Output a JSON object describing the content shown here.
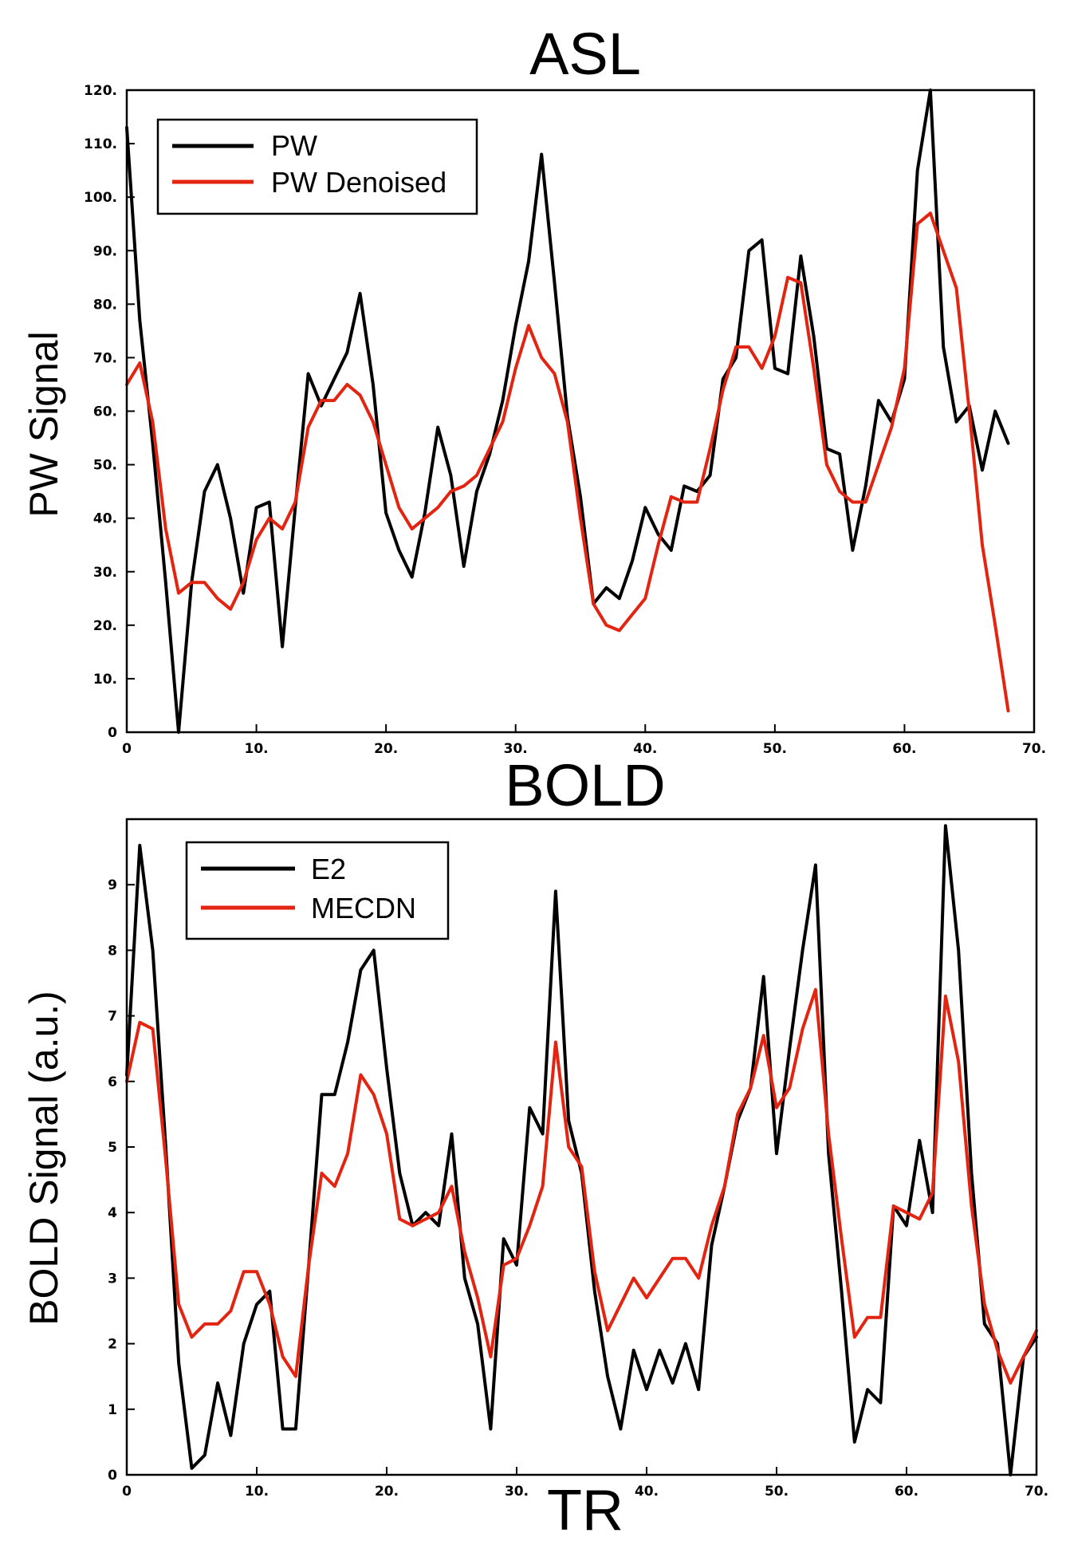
{
  "chart_data": [
    {
      "type": "line",
      "title": "ASL",
      "xlabel": "",
      "ylabel": "PW Signal",
      "xlim": [
        0,
        70
      ],
      "ylim": [
        0,
        120
      ],
      "xticks": [
        0,
        10,
        20,
        30,
        40,
        50,
        60,
        70
      ],
      "xtick_labels": [
        "0",
        "10.",
        "20.",
        "30.",
        "40.",
        "50.",
        "60.",
        "70."
      ],
      "yticks": [
        0,
        10,
        20,
        30,
        40,
        50,
        60,
        70,
        80,
        90,
        100,
        110,
        120
      ],
      "ytick_labels": [
        "0",
        "10.",
        "20.",
        "30.",
        "40.",
        "50.",
        "60.",
        "70.",
        "80.",
        "90.",
        "100.",
        "110.",
        "120."
      ],
      "legend_position": "top-left",
      "series": [
        {
          "name": "PW",
          "color": "#000000",
          "x": [
            0,
            1,
            2,
            3,
            4,
            5,
            6,
            7,
            8,
            9,
            10,
            11,
            12,
            13,
            14,
            15,
            16,
            17,
            18,
            19,
            20,
            21,
            22,
            23,
            24,
            25,
            26,
            27,
            28,
            29,
            30,
            31,
            32,
            33,
            34,
            35,
            36,
            37,
            38,
            39,
            40,
            41,
            42,
            43,
            44,
            45,
            46,
            47,
            48,
            49,
            50,
            51,
            52,
            53,
            54,
            55,
            56,
            57,
            58,
            59,
            60,
            61,
            62,
            63,
            64,
            65,
            66,
            67,
            68
          ],
          "y": [
            113,
            77,
            54,
            28,
            0,
            28,
            45,
            50,
            40,
            26,
            42,
            43,
            16,
            42,
            67,
            61,
            66,
            71,
            82,
            65,
            41,
            34,
            29,
            41,
            57,
            48,
            31,
            45,
            52,
            62,
            76,
            88,
            108,
            84,
            59,
            44,
            24,
            27,
            25,
            32,
            42,
            37,
            34,
            46,
            45,
            48,
            66,
            70,
            90,
            92,
            68,
            67,
            89,
            74,
            53,
            52,
            34,
            46,
            62,
            58,
            66,
            105,
            120,
            72,
            58,
            61,
            49,
            60,
            54
          ]
        },
        {
          "name": "PW Denoised",
          "color": "#e32410",
          "x": [
            0,
            1,
            2,
            3,
            4,
            5,
            6,
            7,
            8,
            9,
            10,
            11,
            12,
            13,
            14,
            15,
            16,
            17,
            18,
            19,
            20,
            21,
            22,
            23,
            24,
            25,
            26,
            27,
            28,
            29,
            30,
            31,
            32,
            33,
            34,
            35,
            36,
            37,
            38,
            39,
            40,
            41,
            42,
            43,
            44,
            45,
            46,
            47,
            48,
            49,
            50,
            51,
            52,
            53,
            54,
            55,
            56,
            57,
            58,
            59,
            60,
            61,
            62,
            63,
            64,
            65,
            66,
            67,
            68
          ],
          "y": [
            65,
            69,
            58,
            38,
            26,
            28,
            28,
            25,
            23,
            28,
            36,
            40,
            38,
            43,
            57,
            62,
            62,
            65,
            63,
            58,
            50,
            42,
            38,
            40,
            42,
            45,
            46,
            48,
            53,
            58,
            68,
            76,
            70,
            67,
            58,
            40,
            24,
            20,
            19,
            22,
            25,
            35,
            44,
            43,
            43,
            53,
            64,
            72,
            72,
            68,
            74,
            85,
            84,
            68,
            50,
            45,
            43,
            43,
            50,
            57,
            68,
            95,
            97,
            90,
            83,
            60,
            35,
            20,
            4
          ]
        }
      ]
    },
    {
      "type": "line",
      "title": "BOLD",
      "xlabel": "TR",
      "ylabel": "BOLD Signal (a.u.)",
      "xlim": [
        0,
        70
      ],
      "ylim": [
        0,
        10
      ],
      "xticks": [
        0,
        10,
        20,
        30,
        40,
        50,
        60,
        70
      ],
      "xtick_labels": [
        "0",
        "10.",
        "20.",
        "30.",
        "40.",
        "50.",
        "60.",
        "70."
      ],
      "yticks": [
        0,
        1,
        2,
        3,
        4,
        5,
        6,
        7,
        8,
        9
      ],
      "ytick_labels": [
        "0",
        "1",
        "2",
        "3",
        "4",
        "5",
        "6",
        "7",
        "8",
        "9"
      ],
      "legend_position": "top-left",
      "series": [
        {
          "name": "E2",
          "color": "#000000",
          "x": [
            0,
            1,
            2,
            3,
            4,
            5,
            6,
            7,
            8,
            9,
            10,
            11,
            12,
            13,
            14,
            15,
            16,
            17,
            18,
            19,
            20,
            21,
            22,
            23,
            24,
            25,
            26,
            27,
            28,
            29,
            30,
            31,
            32,
            33,
            34,
            35,
            36,
            37,
            38,
            39,
            40,
            41,
            42,
            43,
            44,
            45,
            46,
            47,
            48,
            49,
            50,
            51,
            52,
            53,
            54,
            55,
            56,
            57,
            58,
            59,
            60,
            61,
            62,
            63,
            64,
            65,
            66,
            67,
            68,
            69,
            70
          ],
          "y": [
            6.1,
            9.6,
            8.0,
            5.0,
            1.7,
            0.1,
            0.3,
            1.4,
            0.6,
            2.0,
            2.6,
            2.8,
            0.7,
            0.7,
            3.2,
            5.8,
            5.8,
            6.6,
            7.7,
            8.0,
            6.2,
            4.6,
            3.8,
            4.0,
            3.8,
            5.2,
            3.0,
            2.3,
            0.7,
            3.6,
            3.2,
            5.6,
            5.2,
            8.9,
            5.4,
            4.6,
            2.8,
            1.5,
            0.7,
            1.9,
            1.3,
            1.9,
            1.4,
            2.0,
            1.3,
            3.5,
            4.4,
            5.4,
            5.9,
            7.6,
            4.9,
            6.5,
            8.0,
            9.3,
            4.9,
            2.8,
            0.5,
            1.3,
            1.1,
            4.1,
            3.8,
            5.1,
            4.0,
            9.9,
            8.0,
            4.6,
            2.3,
            2.0,
            0.0,
            1.8,
            2.1
          ]
        },
        {
          "name": "MECDN",
          "color": "#e32410",
          "x": [
            0,
            1,
            2,
            3,
            4,
            5,
            6,
            7,
            8,
            9,
            10,
            11,
            12,
            13,
            14,
            15,
            16,
            17,
            18,
            19,
            20,
            21,
            22,
            23,
            24,
            25,
            26,
            27,
            28,
            29,
            30,
            31,
            32,
            33,
            34,
            35,
            36,
            37,
            38,
            39,
            40,
            41,
            42,
            43,
            44,
            45,
            46,
            47,
            48,
            49,
            50,
            51,
            52,
            53,
            54,
            55,
            56,
            57,
            58,
            59,
            60,
            61,
            62,
            63,
            64,
            65,
            66,
            67,
            68,
            69,
            70
          ],
          "y": [
            6.0,
            6.9,
            6.8,
            4.8,
            2.6,
            2.1,
            2.3,
            2.3,
            2.5,
            3.1,
            3.1,
            2.6,
            1.8,
            1.5,
            3.2,
            4.6,
            4.4,
            4.9,
            6.1,
            5.8,
            5.2,
            3.9,
            3.8,
            3.9,
            4.0,
            4.4,
            3.4,
            2.7,
            1.8,
            3.2,
            3.3,
            3.8,
            4.4,
            6.6,
            5.0,
            4.7,
            3.1,
            2.2,
            2.6,
            3.0,
            2.7,
            3.0,
            3.3,
            3.3,
            3.0,
            3.8,
            4.4,
            5.5,
            5.9,
            6.7,
            5.6,
            5.9,
            6.8,
            7.4,
            5.2,
            3.6,
            2.1,
            2.4,
            2.4,
            4.1,
            4.0,
            3.9,
            4.3,
            7.3,
            6.3,
            4.1,
            2.6,
            1.9,
            1.4,
            1.8,
            2.2
          ]
        }
      ]
    }
  ]
}
